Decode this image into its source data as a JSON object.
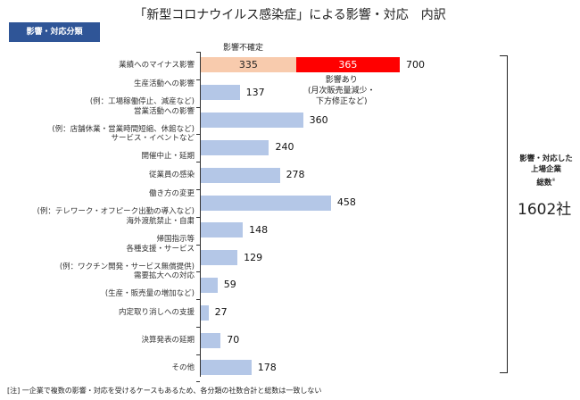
{
  "chart_data": {
    "type": "bar",
    "orientation": "horizontal",
    "title": "「新型コロナウイルス感染症」による影響・対応　内訳",
    "category_header": "影響・対応分類",
    "categories": [
      [
        "業績へのマイナス影響"
      ],
      [
        "生産活動への影響",
        "(例：工場稼働停止、減産など)"
      ],
      [
        "営業活動への影響",
        "(例：店舗休業・営業時間短縮、休館など)"
      ],
      [
        "サービス・イベントなど",
        "開催中止・延期"
      ],
      [
        "従業員の感染"
      ],
      [
        "働き方の変更",
        "(例：テレワーク・オフピーク出勤の導入など)"
      ],
      [
        "海外渡航禁止・自粛",
        "帰国指示等"
      ],
      [
        "各種支援・サービス",
        "(例：ワクチン開発・サービス無償提供)"
      ],
      [
        "需要拡大への対応",
        "(生産・販売量の増加など)"
      ],
      [
        "内定取り消しへの支援"
      ],
      [
        "決算発表の延期"
      ],
      [
        "その他"
      ]
    ],
    "values": [
      700,
      137,
      360,
      240,
      278,
      458,
      148,
      129,
      59,
      27,
      70,
      178
    ],
    "value_labels": [
      "700",
      "137",
      "360",
      "240",
      "278",
      "458",
      "148",
      "129",
      "59",
      "27",
      "70",
      "178"
    ],
    "stacked_first": {
      "series": [
        {
          "name": "影響不確定",
          "value": 335,
          "label": "335",
          "color": "#f8cbad"
        },
        {
          "name": "影響あり",
          "value": 365,
          "label": "365",
          "color": "#ff0000"
        }
      ]
    },
    "annotation_uncertain": "影響不確定",
    "annotation_affected": [
      "影響あり",
      "(月次販売量減少・",
      "下方修正など)"
    ],
    "xlim": [
      0,
      700
    ],
    "bar_color": "#b4c7e7"
  },
  "side": {
    "lines": [
      "影響・対応した",
      "上場企業",
      "総数"
    ],
    "mark": "※",
    "total": "1602社"
  },
  "note": "[注] 一企業で複数の影響・対応を受けるケースもあるため、各分類の社数合計と総数は一致しない"
}
